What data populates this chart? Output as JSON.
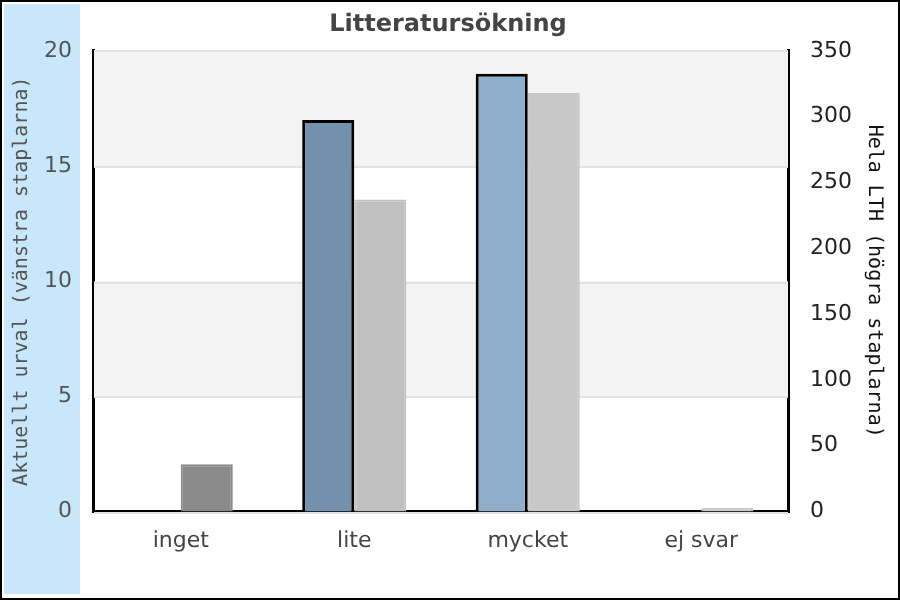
{
  "chart_data": {
    "type": "bar",
    "title": "Litteratursökning",
    "ylabel": "Aktuellt urval (vänstra staplarna)",
    "y2label": "Hela LTH (högra staplarna)",
    "categories": [
      "inget",
      "lite",
      "mycket",
      "ej svar"
    ],
    "series": [
      {
        "colors": [
          "#7391ac",
          "#7391ac",
          "#8eaecb",
          "#8eaecb"
        ],
        "values": [
          0,
          17,
          19,
          0
        ]
      },
      {
        "axis": "y2",
        "colors": [
          "#8a8a8a",
          "#c0c0c0",
          "#c8c8c8",
          "#c8c8c8"
        ],
        "values": [
          36,
          237,
          318,
          3
        ]
      }
    ],
    "ylim": [
      0,
      20
    ],
    "yticks": [
      0,
      5,
      10,
      15,
      20
    ],
    "y2lim": [
      0,
      350
    ],
    "y2ticks": [
      0,
      50,
      100,
      150,
      200,
      250,
      300,
      350
    ],
    "grid": "y",
    "legend": false
  }
}
